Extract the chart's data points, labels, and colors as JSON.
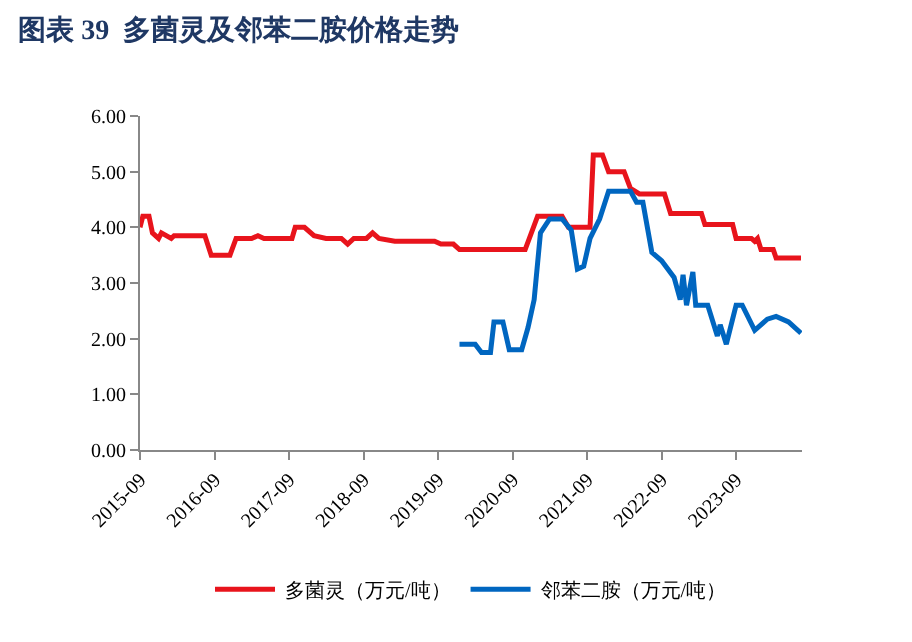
{
  "chart_data": {
    "type": "line",
    "title": "图表 39  多菌灵及邻苯二胺价格走势",
    "xlim": [
      "2015-09",
      "2024-07-20"
    ],
    "xticks": [
      "2015-09",
      "2016-09",
      "2017-09",
      "2018-09",
      "2019-09",
      "2020-09",
      "2021-09",
      "2022-09",
      "2023-09"
    ],
    "ylim": [
      0,
      6
    ],
    "yticks": [
      {
        "value": 0,
        "label": "0.00"
      },
      {
        "value": 1,
        "label": "1.00"
      },
      {
        "value": 2,
        "label": "2.00"
      },
      {
        "value": 3,
        "label": "3.00"
      },
      {
        "value": 4,
        "label": "4.00"
      },
      {
        "value": 5,
        "label": "5.00"
      },
      {
        "value": 6,
        "label": "6.00"
      }
    ],
    "legend": "bottom",
    "marker": "none",
    "line_style": "solid",
    "series": [
      {
        "name": "多菌灵（万元/吨）",
        "color": "#e8141c",
        "x": [
          "2015-09-01",
          "2015-09-15",
          "2015-10-15",
          "2015-11-01",
          "2015-12-01",
          "2015-12-15",
          "2016-02-01",
          "2016-02-15",
          "2016-07-15",
          "2016-08-15",
          "2016-11-15",
          "2016-12-15",
          "2017-03-01",
          "2017-04-01",
          "2017-05-01",
          "2017-09-15",
          "2017-10-01",
          "2017-11-15",
          "2018-01-01",
          "2018-03-01",
          "2018-05-15",
          "2018-06-15",
          "2018-07-15",
          "2018-09-15",
          "2018-10-15",
          "2018-11-15",
          "2019-02-01",
          "2019-08-15",
          "2019-09-15",
          "2019-11-15",
          "2019-12-15",
          "2020-11-01",
          "2021-01-01",
          "2021-05-01",
          "2021-06-01",
          "2021-09-15",
          "2021-10-01",
          "2021-11-15",
          "2021-12-15",
          "2022-03-01",
          "2022-04-01",
          "2022-05-15",
          "2022-09-15",
          "2022-10-15",
          "2023-03-15",
          "2023-04-01",
          "2023-08-15",
          "2023-09-01",
          "2023-11-15",
          "2023-12-01",
          "2023-12-15",
          "2024-01-01",
          "2024-03-01",
          "2024-03-15",
          "2024-07-15"
        ],
        "values": [
          4.0,
          4.2,
          4.2,
          3.9,
          3.8,
          3.9,
          3.8,
          3.85,
          3.85,
          3.5,
          3.5,
          3.8,
          3.8,
          3.85,
          3.8,
          3.8,
          4.0,
          4.0,
          3.85,
          3.8,
          3.8,
          3.7,
          3.8,
          3.8,
          3.9,
          3.8,
          3.75,
          3.75,
          3.7,
          3.7,
          3.6,
          3.6,
          4.2,
          4.2,
          4.0,
          4.0,
          5.3,
          5.3,
          5.0,
          5.0,
          4.7,
          4.6,
          4.6,
          4.25,
          4.25,
          4.05,
          4.05,
          3.8,
          3.8,
          3.75,
          3.8,
          3.6,
          3.6,
          3.45,
          3.45
        ]
      },
      {
        "name": "邻苯二胺（万元/吨）",
        "color": "#0066c0",
        "x": [
          "2019-12-15",
          "2020-03-01",
          "2020-04-01",
          "2020-05-15",
          "2020-06-01",
          "2020-07-15",
          "2020-08-15",
          "2020-10-15",
          "2020-11-15",
          "2020-12-15",
          "2021-01-15",
          "2021-03-01",
          "2021-05-01",
          "2021-06-15",
          "2021-07-15",
          "2021-08-15",
          "2021-09-15",
          "2021-11-01",
          "2021-12-15",
          "2022-04-01",
          "2022-05-01",
          "2022-06-01",
          "2022-07-15",
          "2022-09-01",
          "2022-11-01",
          "2022-12-01",
          "2022-12-15",
          "2023-01-01",
          "2023-02-01",
          "2023-02-15",
          "2023-04-15",
          "2023-06-01",
          "2023-06-15",
          "2023-07-15",
          "2023-08-01",
          "2023-09-01",
          "2023-10-01",
          "2023-12-01",
          "2024-02-01",
          "2024-03-15",
          "2024-05-15",
          "2024-07-15"
        ],
        "values": [
          1.9,
          1.9,
          1.75,
          1.75,
          2.3,
          2.3,
          1.8,
          1.8,
          2.2,
          2.7,
          3.9,
          4.15,
          4.15,
          3.95,
          3.25,
          3.3,
          3.8,
          4.15,
          4.65,
          4.65,
          4.45,
          4.45,
          3.55,
          3.4,
          3.1,
          2.7,
          3.15,
          2.6,
          3.2,
          2.6,
          2.6,
          2.05,
          2.25,
          1.9,
          2.15,
          2.6,
          2.6,
          2.15,
          2.35,
          2.4,
          2.3,
          2.1
        ]
      }
    ]
  }
}
